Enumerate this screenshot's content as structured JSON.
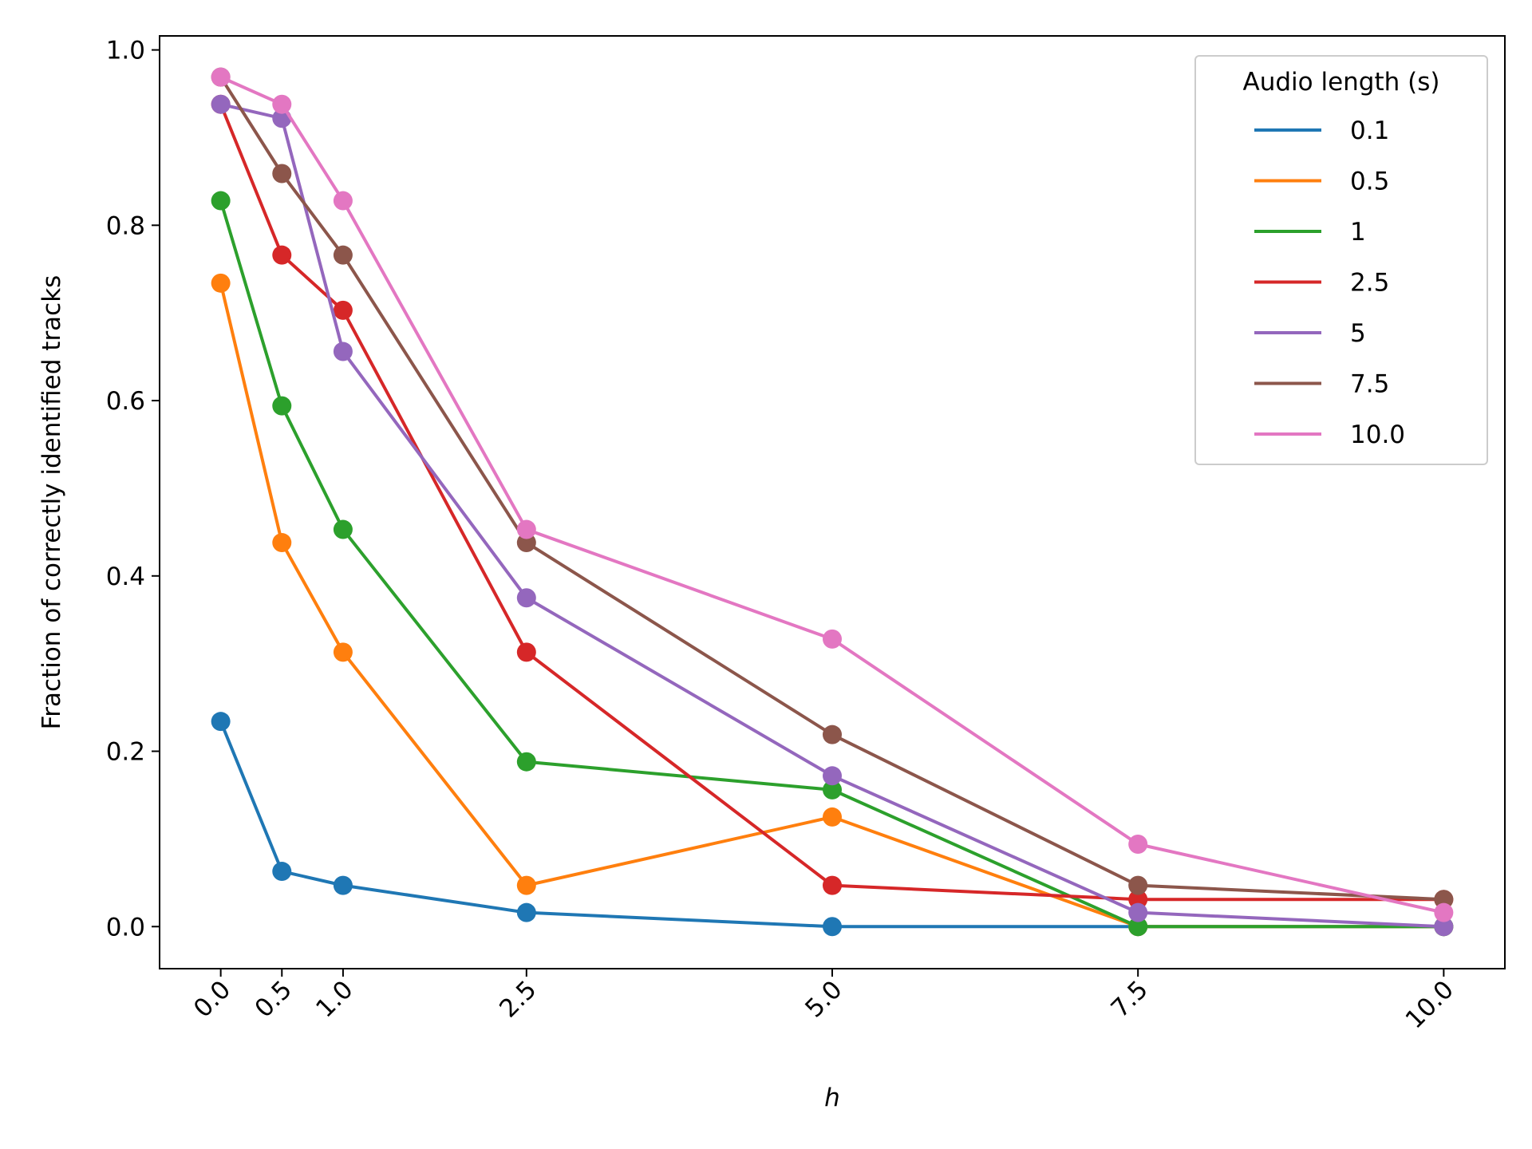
{
  "chart_data": {
    "type": "line",
    "title": "",
    "xlabel": "h",
    "ylabel": "Fraction of correctly identified tracks",
    "x": [
      0.0,
      0.5,
      1.0,
      2.5,
      5.0,
      7.5,
      10.0
    ],
    "x_tick_labels": [
      "0.0",
      "0.5",
      "1.0",
      "2.5",
      "5.0",
      "7.5",
      "10.0"
    ],
    "y_ticks": [
      0.0,
      0.2,
      0.4,
      0.6,
      0.8,
      1.0
    ],
    "y_tick_labels": [
      "0.0",
      "0.2",
      "0.4",
      "0.6",
      "0.8",
      "1.0"
    ],
    "xlim": [
      -0.5,
      10.5
    ],
    "ylim": [
      -0.048,
      1.016
    ],
    "grid": false,
    "markers": true,
    "legend_title": "Audio length (s)",
    "legend_placement": "top-right",
    "series": [
      {
        "name": "0.1",
        "color": "#1f77b4",
        "values": [
          0.234,
          0.063,
          0.047,
          0.016,
          0.0,
          0.0,
          0.0
        ]
      },
      {
        "name": "0.5",
        "color": "#ff7f0e",
        "values": [
          0.734,
          0.438,
          0.313,
          0.047,
          0.125,
          0.0,
          0.0
        ]
      },
      {
        "name": "1",
        "color": "#2ca02c",
        "values": [
          0.828,
          0.594,
          0.453,
          0.188,
          0.156,
          0.0,
          0.0
        ]
      },
      {
        "name": "2.5",
        "color": "#d62728",
        "values": [
          0.938,
          0.766,
          0.703,
          0.313,
          0.047,
          0.031,
          0.031
        ]
      },
      {
        "name": "5",
        "color": "#9467bd",
        "values": [
          0.938,
          0.922,
          0.656,
          0.375,
          0.172,
          0.016,
          0.0
        ]
      },
      {
        "name": "7.5",
        "color": "#8c564b",
        "values": [
          0.969,
          0.859,
          0.766,
          0.438,
          0.219,
          0.047,
          0.031
        ]
      },
      {
        "name": "10.0",
        "color": "#e377c2",
        "values": [
          0.969,
          0.938,
          0.828,
          0.453,
          0.328,
          0.094,
          0.016
        ]
      }
    ]
  }
}
